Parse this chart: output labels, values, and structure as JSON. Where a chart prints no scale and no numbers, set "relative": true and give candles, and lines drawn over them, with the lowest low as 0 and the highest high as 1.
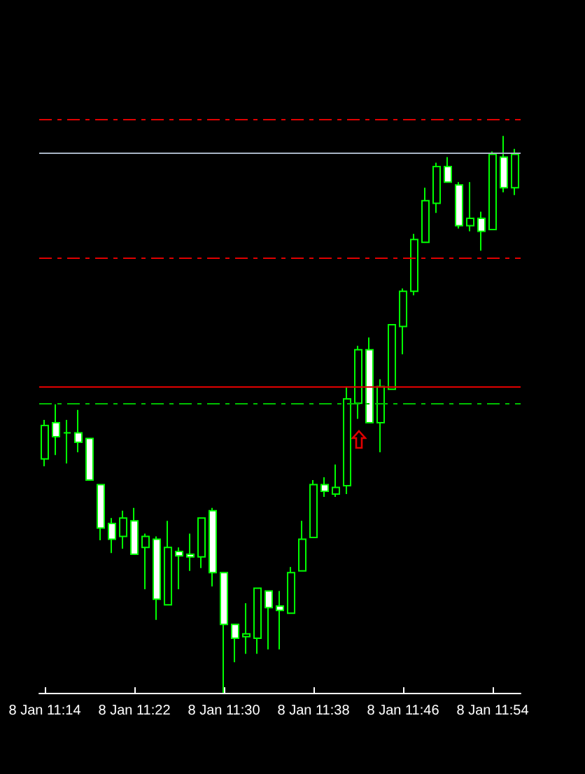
{
  "chart_data": {
    "type": "candlestick",
    "relative": true,
    "categories": [
      "8 Jan 11:14",
      null,
      null,
      null,
      null,
      null,
      null,
      null,
      "8 Jan 11:22",
      null,
      null,
      null,
      null,
      null,
      null,
      null,
      "8 Jan 11:30",
      null,
      null,
      null,
      null,
      null,
      null,
      null,
      "8 Jan 11:38",
      null,
      null,
      null,
      null,
      null,
      null,
      null,
      "8 Jan 11:46",
      null,
      null,
      null,
      null,
      null,
      null,
      null,
      "8 Jan 11:54",
      null,
      null
    ],
    "color": "#00ff00",
    "ohlc": [
      [
        0.42,
        0.49,
        0.407,
        0.48
      ],
      [
        0.485,
        0.518,
        0.427,
        0.46
      ],
      [
        0.467,
        0.49,
        0.412,
        0.467
      ],
      [
        0.467,
        0.508,
        0.432,
        0.45
      ],
      [
        0.457,
        0.457,
        0.382,
        0.382
      ],
      [
        0.374,
        0.374,
        0.274,
        0.296
      ],
      [
        0.304,
        0.314,
        0.251,
        0.276
      ],
      [
        0.281,
        0.327,
        0.259,
        0.314
      ],
      [
        0.309,
        0.332,
        0.249,
        0.249
      ],
      [
        0.261,
        0.286,
        0.186,
        0.281
      ],
      [
        0.276,
        0.281,
        0.131,
        0.168
      ],
      [
        0.158,
        0.309,
        0.158,
        0.261
      ],
      [
        0.254,
        0.261,
        0.186,
        0.246
      ],
      [
        0.249,
        0.286,
        0.219,
        0.244
      ],
      [
        0.244,
        0.314,
        0.224,
        0.314
      ],
      [
        0.327,
        0.332,
        0.191,
        0.216
      ],
      [
        0.216,
        0.216,
        0,
        0.123
      ],
      [
        0.123,
        0.123,
        0.055,
        0.098
      ],
      [
        0.101,
        0.161,
        0.07,
        0.106
      ],
      [
        0.098,
        0.188,
        0.07,
        0.188
      ],
      [
        0.183,
        0.183,
        0.078,
        0.153
      ],
      [
        0.156,
        0.183,
        0.078,
        0.148
      ],
      [
        0.143,
        0.226,
        0.143,
        0.216
      ],
      [
        0.219,
        0.309,
        0.219,
        0.276
      ],
      [
        0.279,
        0.382,
        0.279,
        0.374
      ],
      [
        0.374,
        0.387,
        0.352,
        0.362
      ],
      [
        0.357,
        0.41,
        0.352,
        0.369
      ],
      [
        0.372,
        0.55,
        0.357,
        0.528
      ],
      [
        0.52,
        0.623,
        0.492,
        0.616
      ],
      [
        0.616,
        0.638,
        0.485,
        0.485
      ],
      [
        0.485,
        0.563,
        0.432,
        0.55
      ],
      [
        0.545,
        0.661,
        0.545,
        0.661
      ],
      [
        0.658,
        0.726,
        0.608,
        0.721
      ],
      [
        0.721,
        0.824,
        0.714,
        0.814
      ],
      [
        0.809,
        0.907,
        0.809,
        0.884
      ],
      [
        0.879,
        0.952,
        0.862,
        0.945
      ],
      [
        0.945,
        0.962,
        0.917,
        0.917
      ],
      [
        0.912,
        0.917,
        0.834,
        0.839
      ],
      [
        0.839,
        0.917,
        0.829,
        0.852
      ],
      [
        0.852,
        0.864,
        0.794,
        0.829
      ],
      [
        0.832,
        0.972,
        0.832,
        0.967
      ],
      [
        0.962,
        1,
        0.899,
        0.907
      ],
      [
        0.907,
        0.977,
        0.894,
        0.967
      ]
    ],
    "ref_lines": [
      {
        "axis": "y",
        "value": 1.03,
        "color": "#e00000",
        "line_style": "dashed"
      },
      {
        "axis": "y",
        "value": 0.967,
        "color": "#a8b4c4",
        "line_style": "solid"
      },
      {
        "axis": "y",
        "value": 0.78,
        "color": "#e00000",
        "line_style": "dashed"
      },
      {
        "axis": "y",
        "value": 0.548,
        "color": "#e00000",
        "line_style": "solid"
      },
      {
        "axis": "y",
        "value": 0.518,
        "color": "#00c000",
        "line_style": "dashed"
      }
    ],
    "grid": false
  }
}
